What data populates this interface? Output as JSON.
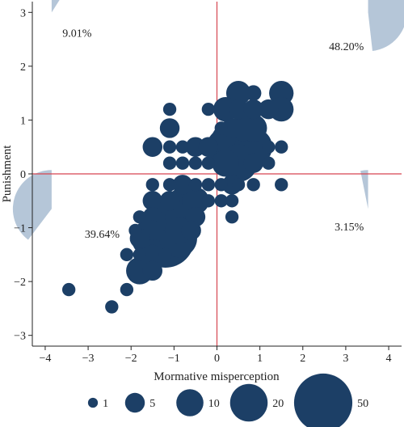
{
  "chart_data": {
    "type": "scatter",
    "xlabel": "Mormative misperception",
    "ylabel": "Punishment",
    "xlim": [
      -4.3,
      4.3
    ],
    "ylim": [
      -3.2,
      3.2
    ],
    "xticks": [
      -4,
      -3,
      -2,
      -1,
      0,
      1,
      2,
      3,
      4
    ],
    "yticks": [
      -3,
      -2,
      -1,
      0,
      1,
      2,
      3
    ],
    "xtick_labels": [
      "−4",
      "−3",
      "−2",
      "−1",
      "0",
      "1",
      "2",
      "3",
      "4"
    ],
    "ytick_labels": [
      "−3",
      "−2",
      "−1",
      "0",
      "1",
      "2",
      "3"
    ],
    "grid": false,
    "reference_lines": {
      "x": 0,
      "y": 0,
      "color": "#d64550"
    },
    "marker_color": "#1c3f66",
    "wedge_color": "#b5c6d8",
    "size_legend": {
      "position": "bottom",
      "entries": [
        {
          "label": "1",
          "value": 1
        },
        {
          "label": "5",
          "value": 5
        },
        {
          "label": "10",
          "value": 10
        },
        {
          "label": "20",
          "value": 20
        },
        {
          "label": "50",
          "value": 50
        }
      ]
    },
    "quadrant_shares": [
      {
        "quadrant": "top-left",
        "label": "9.01%",
        "value": 9.01
      },
      {
        "quadrant": "top-right",
        "label": "48.20%",
        "value": 48.2
      },
      {
        "quadrant": "bottom-left",
        "label": "39.64%",
        "value": 39.64
      },
      {
        "quadrant": "bottom-right",
        "label": "3.15%",
        "value": 3.15
      }
    ],
    "points": [
      {
        "x": 0.5,
        "y": 1.5,
        "n": 8
      },
      {
        "x": 0.85,
        "y": 1.5,
        "n": 3
      },
      {
        "x": 1.5,
        "y": 1.5,
        "n": 8
      },
      {
        "x": -1.1,
        "y": 1.2,
        "n": 2
      },
      {
        "x": -0.2,
        "y": 1.2,
        "n": 2
      },
      {
        "x": 0.2,
        "y": 1.2,
        "n": 8
      },
      {
        "x": 0.5,
        "y": 1.2,
        "n": 5
      },
      {
        "x": 0.85,
        "y": 1.2,
        "n": 5
      },
      {
        "x": 1.2,
        "y": 1.2,
        "n": 5
      },
      {
        "x": 1.5,
        "y": 1.2,
        "n": 8
      },
      {
        "x": -1.1,
        "y": 0.85,
        "n": 5
      },
      {
        "x": 0.1,
        "y": 0.85,
        "n": 2
      },
      {
        "x": 0.35,
        "y": 0.85,
        "n": 5
      },
      {
        "x": 0.65,
        "y": 0.85,
        "n": 10
      },
      {
        "x": 0.85,
        "y": 0.85,
        "n": 10
      },
      {
        "x": -1.5,
        "y": 0.5,
        "n": 5
      },
      {
        "x": -1.1,
        "y": 0.5,
        "n": 2
      },
      {
        "x": -0.8,
        "y": 0.5,
        "n": 2
      },
      {
        "x": -0.5,
        "y": 0.5,
        "n": 5
      },
      {
        "x": -0.2,
        "y": 0.5,
        "n": 5
      },
      {
        "x": 0.2,
        "y": 0.5,
        "n": 20
      },
      {
        "x": 0.5,
        "y": 0.5,
        "n": 50
      },
      {
        "x": 0.85,
        "y": 0.5,
        "n": 20
      },
      {
        "x": 1.2,
        "y": 0.5,
        "n": 2
      },
      {
        "x": 1.5,
        "y": 0.5,
        "n": 2
      },
      {
        "x": -1.1,
        "y": 0.2,
        "n": 2
      },
      {
        "x": -0.8,
        "y": 0.2,
        "n": 2
      },
      {
        "x": -0.5,
        "y": 0.2,
        "n": 2
      },
      {
        "x": -0.2,
        "y": 0.2,
        "n": 2
      },
      {
        "x": 0.2,
        "y": 0.2,
        "n": 10
      },
      {
        "x": 0.5,
        "y": 0.2,
        "n": 20
      },
      {
        "x": 0.85,
        "y": 0.2,
        "n": 5
      },
      {
        "x": 1.2,
        "y": 0.2,
        "n": 2
      },
      {
        "x": -1.5,
        "y": -0.2,
        "n": 2
      },
      {
        "x": -1.1,
        "y": -0.2,
        "n": 2
      },
      {
        "x": -0.8,
        "y": -0.2,
        "n": 5
      },
      {
        "x": -0.5,
        "y": -0.2,
        "n": 2
      },
      {
        "x": -0.2,
        "y": -0.2,
        "n": 2
      },
      {
        "x": 0.1,
        "y": -0.2,
        "n": 2
      },
      {
        "x": 0.35,
        "y": -0.2,
        "n": 5
      },
      {
        "x": 0.5,
        "y": -0.2,
        "n": 2
      },
      {
        "x": 0.85,
        "y": -0.2,
        "n": 2
      },
      {
        "x": 1.5,
        "y": -0.2,
        "n": 2
      },
      {
        "x": -1.5,
        "y": -0.5,
        "n": 5
      },
      {
        "x": -1.1,
        "y": -0.5,
        "n": 5
      },
      {
        "x": -0.8,
        "y": -0.5,
        "n": 10
      },
      {
        "x": -0.5,
        "y": -0.5,
        "n": 10
      },
      {
        "x": -0.2,
        "y": -0.5,
        "n": 2
      },
      {
        "x": 0.1,
        "y": -0.5,
        "n": 2
      },
      {
        "x": 0.35,
        "y": -0.5,
        "n": 2
      },
      {
        "x": -1.8,
        "y": -0.8,
        "n": 2
      },
      {
        "x": -1.5,
        "y": -0.8,
        "n": 5
      },
      {
        "x": -1.2,
        "y": -0.8,
        "n": 10
      },
      {
        "x": -0.9,
        "y": -0.8,
        "n": 10
      },
      {
        "x": -0.5,
        "y": -0.8,
        "n": 5
      },
      {
        "x": 0.35,
        "y": -0.8,
        "n": 2
      },
      {
        "x": -1.9,
        "y": -1.05,
        "n": 2
      },
      {
        "x": -1.5,
        "y": -1.05,
        "n": 5
      },
      {
        "x": -1.2,
        "y": -1.05,
        "n": 20
      },
      {
        "x": -0.9,
        "y": -1.05,
        "n": 10
      },
      {
        "x": -0.6,
        "y": -1.05,
        "n": 5
      },
      {
        "x": -1.8,
        "y": -1.2,
        "n": 5
      },
      {
        "x": -1.55,
        "y": -1.2,
        "n": 20
      },
      {
        "x": -1.2,
        "y": -1.2,
        "n": 50
      },
      {
        "x": -0.9,
        "y": -1.2,
        "n": 20
      },
      {
        "x": -1.8,
        "y": -1.5,
        "n": 2
      },
      {
        "x": -1.5,
        "y": -1.5,
        "n": 5
      },
      {
        "x": -1.2,
        "y": -1.5,
        "n": 2
      },
      {
        "x": -2.1,
        "y": -1.5,
        "n": 2
      },
      {
        "x": -1.8,
        "y": -1.8,
        "n": 10
      },
      {
        "x": -1.5,
        "y": -1.8,
        "n": 5
      },
      {
        "x": -2.1,
        "y": -2.15,
        "n": 2
      },
      {
        "x": -3.45,
        "y": -2.15,
        "n": 2
      },
      {
        "x": -2.45,
        "y": -2.47,
        "n": 2
      }
    ]
  }
}
